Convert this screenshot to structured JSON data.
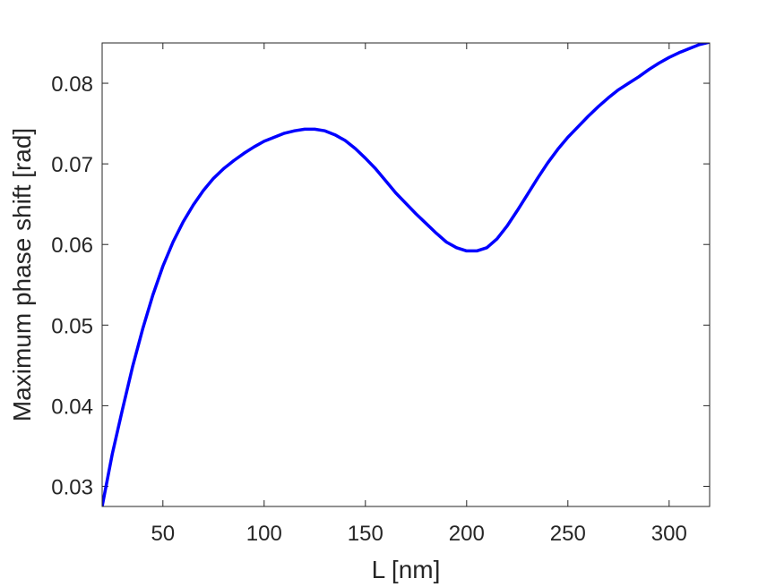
{
  "chart_data": {
    "type": "line",
    "title": "",
    "xlabel": "L [nm]",
    "ylabel": "Maximum phase shift [rad]",
    "xlim": [
      20,
      320
    ],
    "ylim": [
      0.0275,
      0.085
    ],
    "xticks": [
      50,
      100,
      150,
      200,
      250,
      300
    ],
    "yticks": [
      0.03,
      0.04,
      0.05,
      0.06,
      0.07,
      0.08
    ],
    "ytick_labels": [
      "0.03",
      "0.04",
      "0.05",
      "0.06",
      "0.07",
      "0.08"
    ],
    "grid": false,
    "box": true,
    "series": [
      {
        "color": "#0000ff",
        "x": [
          20,
          25,
          30,
          35,
          40,
          45,
          50,
          55,
          60,
          65,
          70,
          75,
          80,
          85,
          90,
          95,
          100,
          105,
          110,
          115,
          120,
          125,
          130,
          135,
          140,
          145,
          150,
          155,
          160,
          165,
          170,
          175,
          180,
          185,
          190,
          195,
          200,
          205,
          210,
          215,
          220,
          225,
          230,
          235,
          240,
          245,
          250,
          255,
          260,
          265,
          270,
          275,
          280,
          285,
          290,
          295,
          300,
          305,
          310,
          315,
          320
        ],
        "y": [
          0.0275,
          0.034,
          0.0395,
          0.0448,
          0.0495,
          0.0537,
          0.0573,
          0.0603,
          0.0628,
          0.0649,
          0.0667,
          0.0682,
          0.0694,
          0.0704,
          0.0713,
          0.0721,
          0.0728,
          0.0733,
          0.0738,
          0.0741,
          0.0743,
          0.0743,
          0.0741,
          0.0736,
          0.0729,
          0.0719,
          0.0707,
          0.0694,
          0.0679,
          0.0664,
          0.0651,
          0.0638,
          0.0626,
          0.0614,
          0.0603,
          0.0596,
          0.0592,
          0.0592,
          0.0596,
          0.0607,
          0.0623,
          0.0642,
          0.0662,
          0.0682,
          0.0701,
          0.0718,
          0.0733,
          0.0746,
          0.0759,
          0.0771,
          0.0782,
          0.0792,
          0.08,
          0.0808,
          0.0817,
          0.0825,
          0.0832,
          0.0838,
          0.0843,
          0.0848,
          0.0851
        ]
      }
    ]
  }
}
